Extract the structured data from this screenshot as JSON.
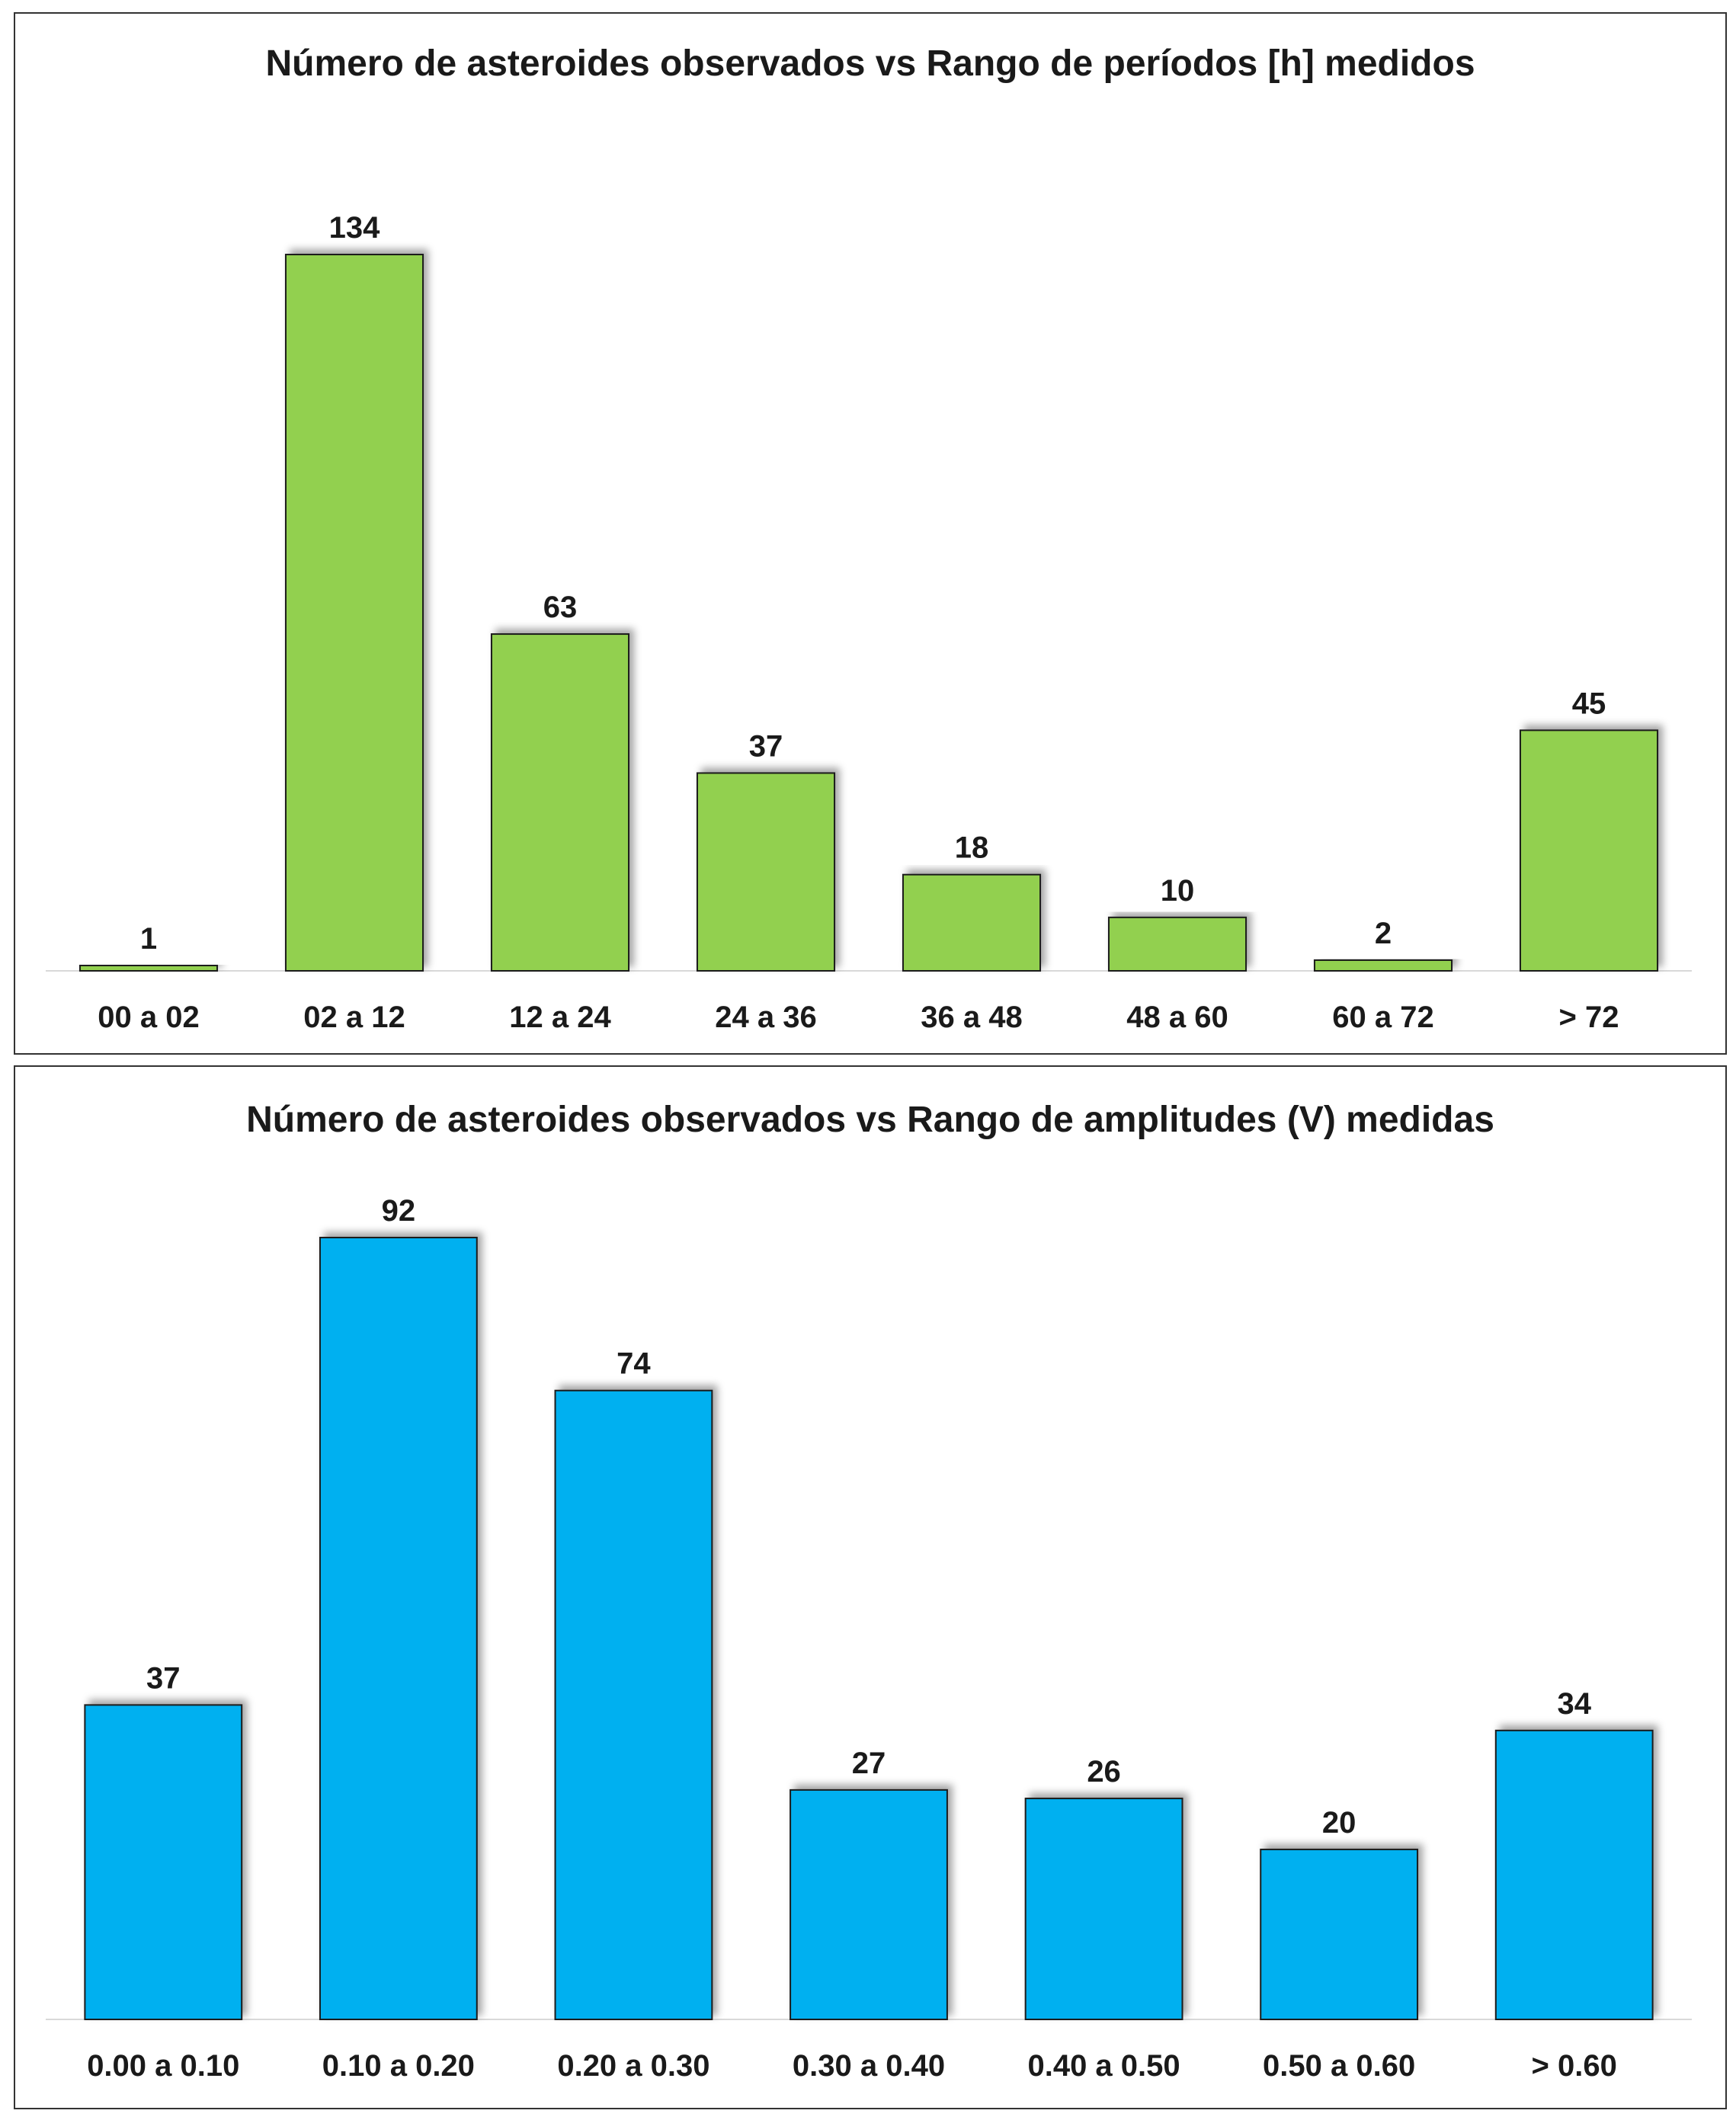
{
  "chart_data": [
    {
      "type": "bar",
      "title": "Número de asteroides observados vs Rango de períodos [h] medidos",
      "categories": [
        "00 a 02",
        "02 a 12",
        "12 a 24",
        "24 a 36",
        "36 a 48",
        "48 a 60",
        "60 a 72",
        "> 72"
      ],
      "values": [
        1,
        134,
        63,
        37,
        18,
        10,
        2,
        45
      ],
      "ylim": [
        0,
        134
      ],
      "grid": false,
      "legend": "none",
      "bar_color": "#92d050"
    },
    {
      "type": "bar",
      "title": "Número de asteroides observados vs Rango de amplitudes (V) medidas",
      "categories": [
        "0.00 a 0.10",
        "0.10 a 0.20",
        "0.20 a 0.30",
        "0.30 a 0.40",
        "0.40 a 0.50",
        "0.50 a 0.60",
        "> 0.60"
      ],
      "values": [
        37,
        92,
        74,
        27,
        26,
        20,
        34
      ],
      "ylim": [
        0,
        92
      ],
      "grid": false,
      "legend": "none",
      "bar_color": "#00b0f0"
    }
  ]
}
